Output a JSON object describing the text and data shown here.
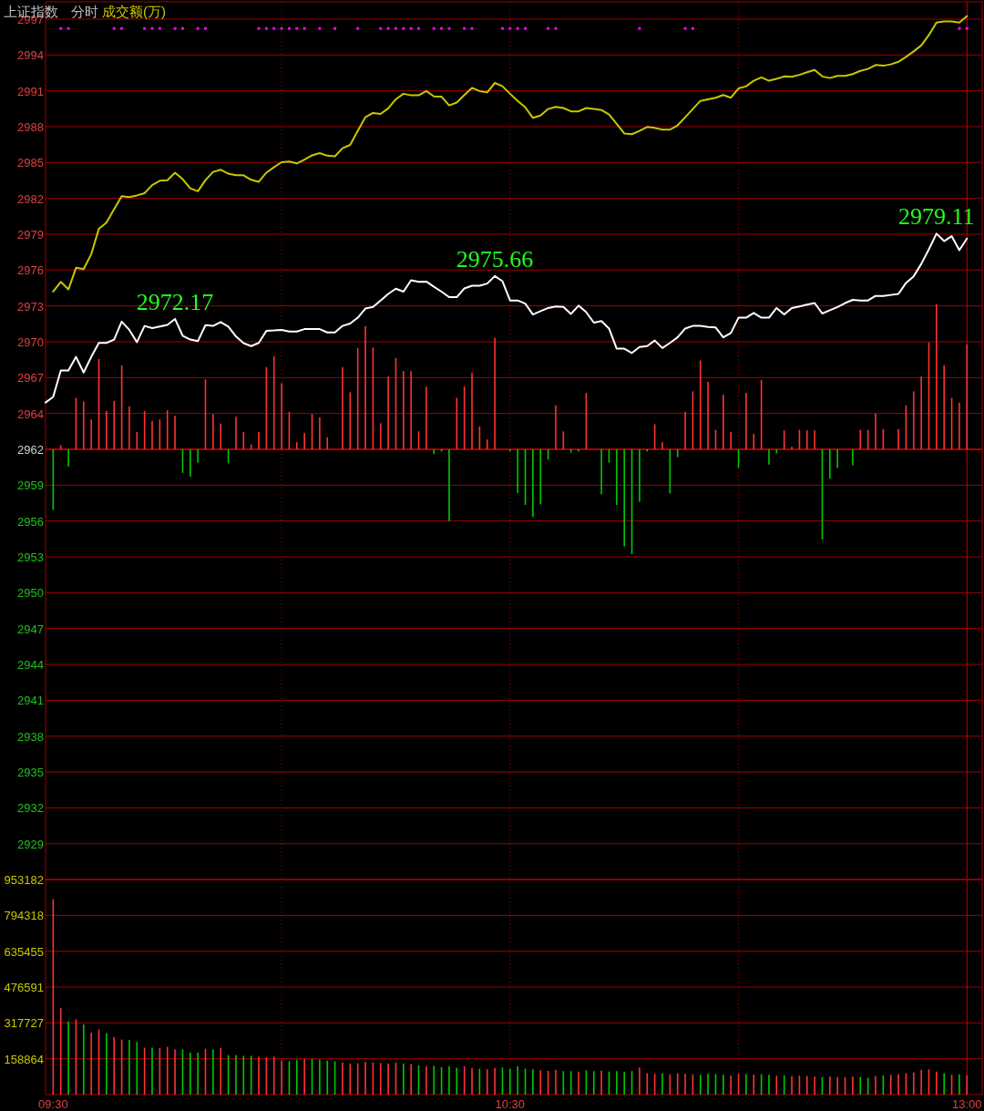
{
  "chart_data": [
    {
      "type": "line",
      "title": "上证指数",
      "subtitle": "分时",
      "annotations": [
        {
          "text": "2972.17",
          "y": 2972.17
        },
        {
          "text": "2975.66",
          "y": 2975.66
        },
        {
          "text": "2979.11",
          "y": 2979.11
        },
        "成交额(万)"
      ],
      "categories": [
        null,
        null,
        null,
        null,
        null,
        null,
        null,
        null,
        null,
        null,
        null,
        null,
        null,
        null,
        null,
        null,
        null,
        null,
        null,
        null,
        null,
        null,
        null,
        null,
        null,
        null,
        null,
        null,
        null,
        null,
        null,
        null,
        null,
        null,
        null,
        null,
        null,
        null,
        null,
        null,
        null,
        null,
        null,
        null,
        null,
        null,
        null,
        null,
        null,
        null,
        null,
        null,
        null,
        null,
        null,
        null,
        null,
        null,
        null,
        null,
        null,
        null,
        null,
        null,
        null,
        null,
        null,
        null,
        null,
        null,
        null,
        null,
        null,
        null,
        null,
        null,
        null,
        null,
        null,
        null,
        null,
        null,
        null,
        null,
        null,
        null,
        null,
        null,
        null,
        null,
        null,
        null,
        null,
        null,
        null,
        null,
        null,
        null,
        null,
        null,
        null,
        null,
        null,
        null,
        null,
        null,
        null,
        null,
        null,
        null,
        null,
        null,
        null,
        null,
        null,
        null,
        null,
        null,
        null,
        null,
        null,
        null
      ],
      "ylim": [
        2926.56,
        2997.97
      ],
      "yticks": [
        {
          "value": 2996.56,
          "label": "2997"
        },
        {
          "value": 2993.65,
          "label": "2994"
        },
        {
          "value": 2990.73,
          "label": "2991"
        },
        {
          "value": 2987.81,
          "label": "2988"
        },
        {
          "value": 2984.9,
          "label": "2985"
        },
        {
          "value": 2981.98,
          "label": "2982"
        },
        {
          "value": 2979.06,
          "label": "2979"
        },
        {
          "value": 2976.15,
          "label": "2976"
        },
        {
          "value": 2973.23,
          "label": "2973"
        },
        {
          "value": 2970.31,
          "label": "2970"
        },
        {
          "value": 2967.39,
          "label": "2967"
        },
        {
          "value": 2964.48,
          "label": "2964"
        },
        {
          "value": 2961.56,
          "label": "2962"
        },
        {
          "value": 2958.64,
          "label": "2959"
        },
        {
          "value": 2955.73,
          "label": "2956"
        },
        {
          "value": 2952.81,
          "label": "2953"
        },
        {
          "value": 2949.89,
          "label": "2950"
        },
        {
          "value": 2946.98,
          "label": "2947"
        },
        {
          "value": 2944.06,
          "label": "2944"
        },
        {
          "value": 2941.14,
          "label": "2941"
        },
        {
          "value": 2938.22,
          "label": "2938"
        },
        {
          "value": 2935.31,
          "label": "2935"
        },
        {
          "value": 2932.39,
          "label": "2932"
        },
        {
          "value": 2929.47,
          "label": "2929"
        }
      ],
      "grid": true,
      "tick_labels": "y",
      "ref_lines": [
        {
          "axis": "y",
          "value": 2961.56,
          "color": "#ff0000",
          "line_style": "solid"
        }
      ],
      "series": [
        {
          "type": "bar",
          "values": [
            null,
            -4.93,
            0.34,
            -1.4,
            4.19,
            3.9,
            2.44,
            7.35,
            3.13,
            3.95,
            6.82,
            3.5,
            1.41,
            3.13,
            2.31,
            2.44,
            3.18,
            2.73,
            -1.92,
            -2.22,
            -1.09,
            5.7,
            2.87,
            2.1,
            -1.14,
            2.65,
            1.41,
            0.4,
            1.41,
            6.69,
            7.56,
            5.39,
            3.05,
            0.58,
            1.33,
            2.87,
            2.6,
            0.98,
            null,
            6.69,
            4.64,
            8.23,
            10.03,
            8.28,
            2.12,
            5.92,
            7.43,
            6.37,
            6.37,
            1.46,
            5.09,
            -0.38,
            -0.18,
            -5.85,
            4.19,
            5.12,
            6.24,
            1.86,
            0.8,
            9.07,
            null,
            -0.18,
            -3.55,
            -4.52,
            -5.5,
            -4.47,
            -0.84,
            3.58,
            1.46,
            -0.27,
            -0.18,
            4.59,
            null,
            -3.66,
            -1.09,
            -4.52,
            -7.9,
            -8.51,
            -4.26,
            -0.18,
            2.04,
            0.58,
            -3.6,
            -0.63,
            3.05,
            4.72,
            7.22,
            5.49,
            1.59,
            4.46,
            1.41,
            -1.51,
            4.59,
            1.27,
            5.65,
            -1.25,
            -0.33,
            1.54,
            0.21,
            1.59,
            1.54,
            1.54,
            -7.34,
            -2.38,
            -1.51,
            null,
            -1.3,
            1.59,
            1.59,
            2.92,
            1.65,
            null,
            1.65,
            3.58,
            4.72,
            5.92,
            8.7,
            11.81,
            6.85,
            4.19,
            3.79,
            8.54
          ],
          "base": [
            null,
            2961.56,
            2961.56,
            2961.56,
            2961.56,
            2961.56,
            2961.56,
            2961.56,
            2961.56,
            2961.56,
            2961.56,
            2961.56,
            2961.56,
            2961.56,
            2961.56,
            2961.56,
            2961.56,
            2961.56,
            2961.56,
            2961.56,
            2961.56,
            2961.56,
            2961.56,
            2961.56,
            2961.56,
            2961.56,
            2961.56,
            2961.56,
            2961.56,
            2961.56,
            2961.56,
            2961.56,
            2961.56,
            2961.56,
            2961.56,
            2961.56,
            2961.56,
            2961.56,
            null,
            2961.56,
            2961.56,
            2961.56,
            2961.56,
            2961.56,
            2961.56,
            2961.56,
            2961.56,
            2961.56,
            2961.56,
            2961.56,
            2961.56,
            2961.56,
            2961.56,
            2961.56,
            2961.56,
            2961.56,
            2961.56,
            2961.56,
            2961.56,
            2961.56,
            null,
            2961.56,
            2961.56,
            2961.56,
            2961.56,
            2961.56,
            2961.56,
            2961.56,
            2961.56,
            2961.56,
            2961.56,
            2961.56,
            null,
            2961.56,
            2961.56,
            2961.56,
            2961.56,
            2961.56,
            2961.56,
            2961.56,
            2961.56,
            2961.56,
            2961.56,
            2961.56,
            2961.56,
            2961.56,
            2961.56,
            2961.56,
            2961.56,
            2961.56,
            2961.56,
            2961.56,
            2961.56,
            2961.56,
            2961.56,
            2961.56,
            2961.56,
            2961.56,
            2961.56,
            2961.56,
            2961.56,
            2961.56,
            2961.56,
            2961.56,
            2961.56,
            null,
            2961.56,
            2961.56,
            2961.56,
            2961.56,
            2961.56,
            null,
            2961.56,
            2961.56,
            2961.56,
            2961.56,
            2961.56,
            2961.56,
            2961.56,
            2961.56,
            2961.56,
            2961.56
          ],
          "colors": [
            null,
            "#00c800",
            "#ff3232",
            "#00c800",
            "#ff3232",
            "#ff3232",
            "#ff3232",
            "#ff3232",
            "#ff3232",
            "#ff3232",
            "#ff3232",
            "#ff3232",
            "#ff3232",
            "#ff3232",
            "#ff3232",
            "#ff3232",
            "#ff3232",
            "#ff3232",
            "#00c800",
            "#00c800",
            "#00c800",
            "#ff3232",
            "#ff3232",
            "#ff3232",
            "#00c800",
            "#ff3232",
            "#ff3232",
            "#ff3232",
            "#ff3232",
            "#ff3232",
            "#ff3232",
            "#ff3232",
            "#ff3232",
            "#ff3232",
            "#ff3232",
            "#ff3232",
            "#ff3232",
            "#ff3232",
            null,
            "#ff3232",
            "#ff3232",
            "#ff3232",
            "#ff3232",
            "#ff3232",
            "#ff3232",
            "#ff3232",
            "#ff3232",
            "#ff3232",
            "#ff3232",
            "#ff3232",
            "#ff3232",
            "#00c800",
            "#00c800",
            "#00c800",
            "#ff3232",
            "#ff3232",
            "#ff3232",
            "#ff3232",
            "#ff3232",
            "#ff3232",
            null,
            "#00c800",
            "#00c800",
            "#00c800",
            "#00c800",
            "#00c800",
            "#00c800",
            "#ff3232",
            "#ff3232",
            "#00c800",
            "#00c800",
            "#ff3232",
            null,
            "#00c800",
            "#00c800",
            "#00c800",
            "#00c800",
            "#00c800",
            "#00c800",
            "#00c800",
            "#ff3232",
            "#ff3232",
            "#00c800",
            "#00c800",
            "#ff3232",
            "#ff3232",
            "#ff3232",
            "#ff3232",
            "#ff3232",
            "#ff3232",
            "#ff3232",
            "#00c800",
            "#ff3232",
            "#ff3232",
            "#ff3232",
            "#00c800",
            "#00c800",
            "#ff3232",
            "#ff3232",
            "#ff3232",
            "#ff3232",
            "#ff3232",
            "#00c800",
            "#00c800",
            "#00c800",
            null,
            "#00c800",
            "#ff3232",
            "#ff3232",
            "#ff3232",
            "#ff3232",
            null,
            "#ff3232",
            "#ff3232",
            "#ff3232",
            "#ff3232",
            "#ff3232",
            "#ff3232",
            "#ff3232",
            "#ff3232",
            "#ff3232",
            "#ff3232"
          ]
        },
        {
          "color": "#c8c800",
          "values": [
            null,
            2974.39,
            2975.18,
            2974.57,
            2976.33,
            2976.22,
            2977.44,
            2979.51,
            2980.01,
            2981.1,
            2982.16,
            2982.08,
            2982.22,
            2982.4,
            2983.06,
            2983.41,
            2983.46,
            2984.07,
            2983.54,
            2982.8,
            2982.56,
            2983.46,
            2984.13,
            2984.31,
            2983.99,
            2983.86,
            2983.86,
            2983.49,
            2983.33,
            2984.07,
            2984.52,
            2984.92,
            2984.97,
            2984.82,
            2985.13,
            2985.48,
            2985.66,
            2985.45,
            2985.4,
            2986.06,
            2986.33,
            2987.47,
            2988.58,
            2988.93,
            2988.85,
            2989.3,
            2990.04,
            2990.49,
            2990.36,
            2990.36,
            2990.71,
            2990.28,
            2990.25,
            2989.54,
            2989.78,
            2990.39,
            2990.97,
            2990.71,
            2990.6,
            2991.37,
            2991.1,
            2990.49,
            2989.91,
            2989.38,
            2988.53,
            2988.72,
            2989.25,
            2989.43,
            2989.33,
            2989.06,
            2989.06,
            2989.33,
            2989.25,
            2989.17,
            2988.8,
            2988.05,
            2987.26,
            2987.2,
            2987.47,
            2987.79,
            2987.71,
            2987.57,
            2987.57,
            2987.92,
            2988.58,
            2989.25,
            2989.91,
            2990.04,
            2990.17,
            2990.39,
            2990.17,
            2990.92,
            2991.1,
            2991.55,
            2991.82,
            2991.55,
            2991.71,
            2991.9,
            2991.87,
            2992.03,
            2992.24,
            2992.43,
            2991.9,
            2991.77,
            2991.95,
            2991.95,
            2992.09,
            2992.35,
            2992.51,
            2992.83,
            2992.77,
            2992.88,
            2993.09,
            2993.49,
            2993.94,
            2994.42,
            2995.27,
            2996.28,
            2996.38,
            2996.38,
            2996.28,
            2996.81
          ]
        },
        {
          "color": "#ffffff",
          "values": [
            2965.37,
            2965.82,
            2967.97,
            2967.97,
            2969.08,
            2967.81,
            2969.08,
            2970.22,
            2970.22,
            2970.49,
            2971.95,
            2971.28,
            2970.28,
            2971.6,
            2971.42,
            2971.55,
            2971.68,
            2972.17,
            2970.81,
            2970.49,
            2970.36,
            2971.66,
            2971.6,
            2971.92,
            2971.55,
            2970.75,
            2970.2,
            2969.96,
            2970.22,
            2971.2,
            2971.23,
            2971.28,
            2971.15,
            2971.15,
            2971.34,
            2971.34,
            2971.34,
            2971.07,
            2971.07,
            2971.6,
            2971.79,
            2972.27,
            2973.01,
            2973.14,
            2973.67,
            2974.2,
            2974.63,
            2974.39,
            2975.32,
            2975.18,
            2975.21,
            2974.79,
            2974.39,
            2973.94,
            2973.94,
            2974.65,
            2974.87,
            2974.87,
            2975.05,
            2975.66,
            2975.24,
            2973.67,
            2973.67,
            2973.41,
            2972.53,
            2972.8,
            2973.06,
            2973.19,
            2973.14,
            2972.58,
            2973.25,
            2972.72,
            2971.87,
            2972.0,
            2971.39,
            2969.75,
            2969.75,
            2969.4,
            2969.88,
            2969.96,
            2970.41,
            2969.8,
            2970.22,
            2970.67,
            2971.39,
            2971.6,
            2971.6,
            2971.52,
            2971.47,
            2970.67,
            2971.02,
            2972.27,
            2972.27,
            2972.66,
            2972.27,
            2972.27,
            2973.06,
            2972.53,
            2973.06,
            2973.19,
            2973.33,
            2973.46,
            2972.61,
            2972.88,
            2973.14,
            2973.46,
            2973.72,
            2973.67,
            2973.67,
            2974.04,
            2974.04,
            2974.12,
            2974.2,
            2975.1,
            2975.64,
            2976.64,
            2977.84,
            2979.11,
            2978.5,
            2978.9,
            2977.76,
            2978.71
          ]
        },
        {
          "type": "scatter",
          "color": "#ff00ff",
          "marker": "square",
          "values": [
            null,
            null,
            2995.8,
            2995.8,
            null,
            null,
            null,
            null,
            null,
            2995.8,
            2995.8,
            null,
            null,
            2995.8,
            2995.8,
            2995.8,
            null,
            2995.8,
            2995.8,
            null,
            2995.8,
            2995.8,
            null,
            null,
            null,
            null,
            null,
            null,
            2995.8,
            2995.8,
            2995.8,
            2995.8,
            2995.8,
            2995.8,
            2995.8,
            null,
            2995.8,
            null,
            2995.8,
            null,
            null,
            2995.8,
            null,
            null,
            2995.8,
            2995.8,
            2995.8,
            2995.8,
            2995.8,
            2995.8,
            null,
            2995.8,
            2995.8,
            2995.8,
            null,
            2995.8,
            2995.8,
            null,
            null,
            null,
            2995.8,
            2995.8,
            2995.8,
            2995.8,
            null,
            null,
            2995.8,
            2995.8,
            null,
            null,
            null,
            null,
            null,
            null,
            null,
            null,
            null,
            null,
            2995.8,
            null,
            null,
            null,
            null,
            null,
            2995.8,
            2995.8,
            null,
            null,
            null,
            null,
            null,
            null,
            null,
            null,
            null,
            null,
            null,
            null,
            null,
            null,
            null,
            null,
            null,
            null,
            null,
            null,
            null,
            null,
            null,
            null,
            null,
            null,
            null,
            null,
            null,
            null,
            null,
            null,
            null,
            null,
            2995.8,
            2995.8
          ]
        }
      ]
    },
    {
      "type": "bar",
      "categories": [
        null,
        "09:30",
        null,
        null,
        null,
        null,
        null,
        null,
        null,
        null,
        null,
        null,
        null,
        null,
        null,
        null,
        null,
        null,
        null,
        null,
        null,
        null,
        null,
        null,
        null,
        null,
        null,
        null,
        null,
        null,
        null,
        null,
        null,
        null,
        null,
        null,
        null,
        null,
        null,
        null,
        null,
        null,
        null,
        null,
        null,
        null,
        null,
        null,
        null,
        null,
        null,
        null,
        null,
        null,
        null,
        null,
        null,
        null,
        null,
        null,
        null,
        "10:30",
        null,
        null,
        null,
        null,
        null,
        null,
        null,
        null,
        null,
        null,
        null,
        null,
        null,
        null,
        null,
        null,
        null,
        null,
        null,
        null,
        null,
        null,
        null,
        null,
        null,
        null,
        null,
        null,
        null,
        null,
        null,
        null,
        null,
        null,
        null,
        null,
        null,
        null,
        null,
        null,
        null,
        null,
        null,
        null,
        null,
        null,
        null,
        null,
        null,
        null,
        null,
        null,
        null,
        null,
        null,
        null,
        null,
        null,
        null,
        "13:00"
      ],
      "ylim": [
        0,
        953182
      ],
      "yticks": [
        158864,
        317727,
        476591,
        635455,
        794318,
        953182
      ],
      "grid": true,
      "series": [
        {
          "values": [
            null,
            866000,
            383000,
            325000,
            333000,
            311000,
            275000,
            289000,
            272000,
            255000,
            244000,
            242000,
            233000,
            208000,
            208000,
            206000,
            212000,
            200000,
            200000,
            186000,
            186000,
            203000,
            200000,
            206000,
            175000,
            175000,
            172000,
            172000,
            168000,
            165000,
            168000,
            152000,
            148000,
            155000,
            158000,
            158000,
            155000,
            150000,
            148000,
            142000,
            138000,
            139000,
            145000,
            142000,
            140000,
            138000,
            142000,
            138000,
            135000,
            130000,
            125000,
            128000,
            122000,
            125000,
            119000,
            125000,
            118000,
            115000,
            112000,
            118000,
            120000,
            115000,
            125000,
            115000,
            112000,
            108000,
            105000,
            110000,
            104000,
            104000,
            102000,
            108000,
            104000,
            106000,
            102000,
            104000,
            100000,
            104000,
            120000,
            95000,
            92000,
            94000,
            90000,
            94000,
            92000,
            90000,
            88000,
            92000,
            90000,
            88000,
            84000,
            92000,
            90000,
            88000,
            90000,
            88000,
            84000,
            85000,
            82000,
            84000,
            83000,
            80000,
            78000,
            80000,
            78000,
            77000,
            80000,
            78000,
            75000,
            82000,
            85000,
            88000,
            90000,
            95000,
            98000,
            110000,
            112000,
            102000,
            95000,
            88000,
            90000,
            86000
          ],
          "colors": [
            null,
            "#ff3232",
            "#ff3232",
            "#00c800",
            "#ff3232",
            "#00c800",
            "#ff3232",
            "#ff3232",
            "#00c800",
            "#ff3232",
            "#ff3232",
            "#00c800",
            "#00c800",
            "#ff3232",
            "#00c800",
            "#ff3232",
            "#ff3232",
            "#ff3232",
            "#00c800",
            "#00c800",
            "#00c800",
            "#ff3232",
            "#00c800",
            "#ff3232",
            "#00c800",
            "#00c800",
            "#00c800",
            "#00c800",
            "#ff3232",
            "#ff3232",
            "#ff3232",
            "#ff3232",
            "#00c800",
            "#00c800",
            "#ff3232",
            "#00c800",
            "#00c800",
            "#00c800",
            "#00c800",
            "#ff3232",
            "#ff3232",
            "#ff3232",
            "#ff3232",
            "#ff3232",
            "#ff3232",
            "#ff3232",
            "#ff3232",
            "#00c800",
            "#ff3232",
            "#00c800",
            "#ff3232",
            "#00c800",
            "#00c800",
            "#00c800",
            "#00c800",
            "#ff3232",
            "#ff3232",
            "#00c800",
            "#ff3232",
            "#ff3232",
            "#00c800",
            "#00c800",
            "#00c800",
            "#00c800",
            "#00c800",
            "#ff3232",
            "#ff3232",
            "#ff3232",
            "#00c800",
            "#00c800",
            "#ff3232",
            "#00c800",
            "#00c800",
            "#ff3232",
            "#00c800",
            "#00c800",
            "#00c800",
            "#00c800",
            "#ff3232",
            "#ff3232",
            "#ff3232",
            "#00c800",
            "#ff3232",
            "#ff3232",
            "#ff3232",
            "#ff3232",
            "#00c800",
            "#00c800",
            "#00c800",
            "#00c800",
            "#ff3232",
            "#ff3232",
            "#00c800",
            "#ff3232",
            "#00c800",
            "#00c800",
            "#ff3232",
            "#00c800",
            "#ff3232",
            "#ff3232",
            "#ff3232",
            "#ff3232",
            "#00c800",
            "#ff3232",
            "#ff3232",
            "#ff3232",
            "#ff3232",
            "#00c800",
            "#00c800",
            "#ff3232",
            "#00c800",
            "#ff3232",
            "#ff3232",
            "#ff3232",
            "#ff3232",
            "#ff3232",
            "#ff3232",
            "#ff3232",
            "#00c800",
            "#ff3232",
            "#00c800",
            "#ff3232"
          ]
        }
      ]
    }
  ]
}
